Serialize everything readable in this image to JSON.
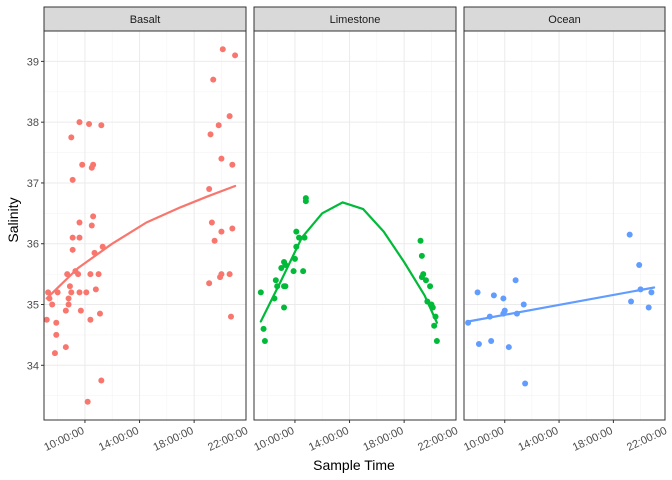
{
  "chart_data": {
    "type": "scatter",
    "xlabel": "Sample Time",
    "ylabel": "Salinity",
    "x_unit": "hours",
    "xlim": [
      7.0,
      21.8
    ],
    "ylim": [
      33.1,
      39.5
    ],
    "x_ticks": [
      {
        "value": 10,
        "label": "10:00:00"
      },
      {
        "value": 14,
        "label": "14:00:00"
      },
      {
        "value": 18,
        "label": "18:00:00"
      },
      {
        "value": 22,
        "label": "22:00:00"
      }
    ],
    "y_ticks": [
      34,
      35,
      36,
      37,
      38,
      39
    ],
    "grid": true,
    "legend": "none",
    "panels": [
      {
        "name": "Basalt",
        "color": "#F8766D",
        "points": [
          [
            7.3,
            35.2
          ],
          [
            7.4,
            35.1
          ],
          [
            7.6,
            35.0
          ],
          [
            7.2,
            34.75
          ],
          [
            8.0,
            35.2
          ],
          [
            7.9,
            34.7
          ],
          [
            7.9,
            34.5
          ],
          [
            7.8,
            34.2
          ],
          [
            8.6,
            34.3
          ],
          [
            8.8,
            35.0
          ],
          [
            8.7,
            35.5
          ],
          [
            8.8,
            35.1
          ],
          [
            8.6,
            34.9
          ],
          [
            8.9,
            35.3
          ],
          [
            9.0,
            35.2
          ],
          [
            9.1,
            36.1
          ],
          [
            9.1,
            35.9
          ],
          [
            9.1,
            37.05
          ],
          [
            9.0,
            37.75
          ],
          [
            9.6,
            38.0
          ],
          [
            9.8,
            37.3
          ],
          [
            9.6,
            36.35
          ],
          [
            9.5,
            35.5
          ],
          [
            9.6,
            35.2
          ],
          [
            9.7,
            34.9
          ],
          [
            9.6,
            36.1
          ],
          [
            9.3,
            35.55
          ],
          [
            10.1,
            35.2
          ],
          [
            10.2,
            33.4
          ],
          [
            10.4,
            34.75
          ],
          [
            10.4,
            35.5
          ],
          [
            10.6,
            36.45
          ],
          [
            10.6,
            37.3
          ],
          [
            10.5,
            37.25
          ],
          [
            10.3,
            37.97
          ],
          [
            10.7,
            35.85
          ],
          [
            10.8,
            35.25
          ],
          [
            11.0,
            35.5
          ],
          [
            11.1,
            34.85
          ],
          [
            11.2,
            33.75
          ],
          [
            11.3,
            35.95
          ],
          [
            11.2,
            37.95
          ],
          [
            10.5,
            36.3
          ],
          [
            19.1,
            35.35
          ],
          [
            19.1,
            36.9
          ],
          [
            19.2,
            37.8
          ],
          [
            19.3,
            36.35
          ],
          [
            19.4,
            38.7
          ],
          [
            19.5,
            36.05
          ],
          [
            19.8,
            37.95
          ],
          [
            19.9,
            35.45
          ],
          [
            20.0,
            35.5
          ],
          [
            20.0,
            36.2
          ],
          [
            20.0,
            37.4
          ],
          [
            20.1,
            39.2
          ],
          [
            20.6,
            35.5
          ],
          [
            20.7,
            34.8
          ],
          [
            20.8,
            36.25
          ],
          [
            20.8,
            37.3
          ],
          [
            20.6,
            38.1
          ],
          [
            21.0,
            39.1
          ]
        ],
        "fit": [
          [
            7.2,
            35.1
          ],
          [
            9.5,
            35.6
          ],
          [
            12.0,
            36.0
          ],
          [
            14.5,
            36.35
          ],
          [
            17.0,
            36.6
          ],
          [
            19.0,
            36.78
          ],
          [
            21.0,
            36.95
          ]
        ]
      },
      {
        "name": "Limestone",
        "color": "#00BA38",
        "points": [
          [
            7.5,
            35.2
          ],
          [
            7.7,
            34.6
          ],
          [
            7.8,
            34.4
          ],
          [
            8.5,
            35.1
          ],
          [
            8.6,
            35.4
          ],
          [
            8.7,
            35.3
          ],
          [
            9.0,
            35.6
          ],
          [
            9.2,
            35.7
          ],
          [
            9.2,
            35.3
          ],
          [
            9.3,
            35.3
          ],
          [
            9.2,
            34.95
          ],
          [
            9.3,
            35.65
          ],
          [
            9.9,
            35.55
          ],
          [
            10.0,
            35.75
          ],
          [
            10.1,
            36.2
          ],
          [
            10.1,
            35.95
          ],
          [
            10.3,
            36.1
          ],
          [
            10.6,
            35.55
          ],
          [
            10.8,
            36.7
          ],
          [
            10.8,
            36.75
          ],
          [
            10.7,
            36.1
          ],
          [
            19.2,
            36.05
          ],
          [
            19.3,
            35.8
          ],
          [
            19.3,
            35.45
          ],
          [
            19.4,
            35.5
          ],
          [
            19.6,
            35.4
          ],
          [
            19.7,
            35.05
          ],
          [
            19.9,
            35.3
          ],
          [
            20.0,
            35.0
          ],
          [
            20.1,
            34.95
          ],
          [
            20.2,
            34.65
          ],
          [
            20.3,
            34.8
          ],
          [
            20.4,
            34.4
          ]
        ],
        "fit": [
          [
            7.5,
            34.72
          ],
          [
            9.0,
            35.4
          ],
          [
            10.5,
            36.1
          ],
          [
            12.0,
            36.5
          ],
          [
            13.5,
            36.68
          ],
          [
            15.0,
            36.57
          ],
          [
            16.5,
            36.2
          ],
          [
            18.0,
            35.7
          ],
          [
            19.5,
            35.15
          ],
          [
            20.4,
            34.7
          ]
        ]
      },
      {
        "name": "Ocean",
        "color": "#619CFF",
        "points": [
          [
            7.3,
            34.7
          ],
          [
            8.0,
            35.2
          ],
          [
            8.1,
            34.35
          ],
          [
            8.9,
            34.8
          ],
          [
            9.0,
            34.4
          ],
          [
            9.2,
            35.15
          ],
          [
            9.9,
            35.1
          ],
          [
            9.9,
            34.85
          ],
          [
            10.0,
            34.9
          ],
          [
            10.3,
            34.3
          ],
          [
            10.8,
            35.4
          ],
          [
            10.9,
            34.85
          ],
          [
            11.4,
            35.0
          ],
          [
            11.5,
            33.7
          ],
          [
            19.2,
            36.15
          ],
          [
            19.3,
            35.05
          ],
          [
            19.9,
            35.65
          ],
          [
            20.0,
            35.25
          ],
          [
            20.6,
            34.95
          ],
          [
            20.8,
            35.2
          ]
        ],
        "fit": [
          [
            7.3,
            34.72
          ],
          [
            21.0,
            35.28
          ]
        ]
      }
    ]
  }
}
